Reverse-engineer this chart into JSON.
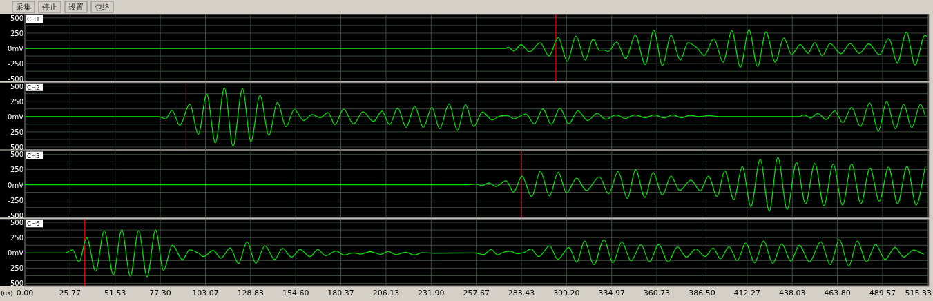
{
  "chart_data": [
    {
      "type": "line",
      "title": "CH1",
      "annotations": [
        "采集",
        "停止",
        "设置",
        "包络"
      ],
      "tick_labels": "y",
      "grid": true,
      "xlim": [
        0,
        516
      ],
      "ylim": [
        -540,
        555
      ],
      "xticks": [
        0,
        25.77,
        51.53,
        77.3,
        103.07,
        128.83,
        154.6,
        180.37,
        206.13,
        231.9,
        257.67,
        283.43,
        309.2,
        334.97,
        360.73,
        386.5,
        412.27,
        438.03,
        463.8,
        489.57,
        515.33
      ],
      "yticks": [
        500,
        {
          "value": 375,
          "label": null
        },
        250,
        {
          "value": 125,
          "label": null
        },
        {
          "value": 0,
          "label": "0mV"
        },
        {
          "value": -125,
          "label": null
        },
        -250,
        {
          "value": -375,
          "label": null
        },
        -500
      ],
      "ref_lines": [
        {
          "axis": "x",
          "value": 303.1,
          "color": "#ff0000"
        }
      ],
      "series": [
        {
          "color": "#00e000",
          "x": [
            0,
            274.2,
            275.9,
            279.1,
            283.2,
            288.1,
            294.1,
            299.2,
            304.4,
            309.6,
            314.5,
            319.9,
            324.3,
            328.0,
            330.5,
            332.9,
            337.8,
            343.0,
            348.4,
            354.1,
            359.0,
            363.9,
            368.8,
            374.1,
            378.5,
            383.4,
            387.8,
            393.2,
            398.6,
            403.5,
            408.4,
            413.3,
            418.2,
            423.0,
            428.3,
            433.2,
            437.7,
            442.6,
            447.0,
            450.8,
            455.2,
            459.6,
            465.8,
            471.1,
            476.3,
            481.7,
            487.8,
            493.1,
            498.0,
            503.2,
            508.1,
            513.8,
            515.0
          ],
          "values": [
            0,
            0,
            19,
            -42,
            60,
            -56,
            93,
            -125,
            181,
            -213,
            199,
            -190,
            153,
            -32,
            -28,
            -51,
            102,
            -167,
            218,
            -264,
            296,
            -282,
            218,
            -190,
            93,
            14,
            -116,
            157,
            -227,
            292,
            -310,
            306,
            -296,
            269,
            -227,
            171,
            -102,
            65,
            -79,
            93,
            -120,
            79,
            -88,
            79,
            -83,
            74,
            -102,
            162,
            -236,
            264,
            -273,
            218,
            190
          ]
        }
      ]
    },
    {
      "type": "line",
      "title": "CH2",
      "tick_labels": "y",
      "grid": true,
      "xlim": [
        0,
        516
      ],
      "ylim": [
        -540,
        555
      ],
      "xticks": [
        0,
        25.77,
        51.53,
        77.3,
        103.07,
        128.83,
        154.6,
        180.37,
        206.13,
        231.9,
        257.67,
        283.43,
        309.2,
        334.97,
        360.73,
        386.5,
        412.27,
        438.03,
        463.8,
        489.57,
        515.33
      ],
      "yticks": [
        500,
        {
          "value": 375,
          "label": null
        },
        250,
        {
          "value": 125,
          "label": null
        },
        {
          "value": 0,
          "label": "0mV"
        },
        {
          "value": -125,
          "label": null
        },
        -250,
        {
          "value": -375,
          "label": null
        },
        -500
      ],
      "ref_lines": [
        {
          "axis": "x",
          "value": 92.0,
          "color": "#a03030"
        }
      ],
      "series": [
        {
          "color": "#00e000",
          "x": [
            0,
            76.2,
            80.3,
            84.0,
            88.4,
            94.1,
            99.0,
            103.8,
            108.7,
            113.9,
            118.8,
            124.2,
            129.0,
            134.2,
            139.3,
            144.2,
            149.0,
            153.8,
            159.1,
            164.0,
            168.5,
            173.0,
            177.0,
            181.9,
            187.6,
            193.0,
            199.0,
            203.8,
            208.2,
            212.8,
            217.6,
            222.5,
            227.4,
            232.3,
            236.8,
            242.1,
            246.9,
            251.5,
            256.2,
            261.2,
            266.8,
            271.3,
            275.4,
            279.1,
            285.9,
            290.8,
            295.7,
            300.4,
            305.4,
            310.4,
            315.7,
            321.2,
            326.6,
            331.6,
            337.6,
            342.6,
            348.3,
            354.0,
            359.3,
            364.8,
            369.7,
            374.8,
            379.5,
            384.8,
            390.5,
            396.2,
            441.9,
            444.8,
            448.3,
            452.6,
            457.3,
            462.2,
            466.9,
            471.9,
            476.9,
            482.2,
            487.2,
            491.9,
            496.9,
            501.6,
            506.2,
            511.2,
            514.1
          ],
          "values": [
            0,
            0,
            -37,
            102,
            -144,
            204,
            -292,
            370,
            -431,
            472,
            -486,
            458,
            -412,
            347,
            -306,
            231,
            -167,
            116,
            -65,
            32,
            -19,
            65,
            -130,
            120,
            -120,
            79,
            -79,
            88,
            -130,
            139,
            -176,
            167,
            -176,
            148,
            -199,
            208,
            -227,
            194,
            -162,
            74,
            -56,
            9,
            19,
            -37,
            42,
            -120,
            125,
            -126,
            134,
            -118,
            93,
            -65,
            53,
            -45,
            28,
            -32,
            28,
            -20,
            28,
            -24,
            28,
            -20,
            20,
            0,
            16,
            0,
            0,
            28,
            -24,
            49,
            -49,
            93,
            -97,
            150,
            -162,
            223,
            -240,
            248,
            -199,
            199,
            -179,
            199,
            4
          ]
        }
      ]
    },
    {
      "type": "line",
      "title": "CH3",
      "tick_labels": "y",
      "grid": true,
      "xlim": [
        0,
        516
      ],
      "ylim": [
        -540,
        555
      ],
      "xticks": [
        0,
        25.77,
        51.53,
        77.3,
        103.07,
        128.83,
        154.6,
        180.37,
        206.13,
        231.9,
        257.67,
        283.43,
        309.2,
        334.97,
        360.73,
        386.5,
        412.27,
        438.03,
        463.8,
        489.57,
        515.33
      ],
      "yticks": [
        500,
        {
          "value": 375,
          "label": null
        },
        250,
        {
          "value": 125,
          "label": null
        },
        {
          "value": 0,
          "label": "0mV"
        },
        {
          "value": -125,
          "label": null
        },
        -250,
        {
          "value": -375,
          "label": null
        },
        -500
      ],
      "ref_lines": [
        {
          "axis": "x",
          "value": 283.3,
          "color": "#a03030"
        }
      ],
      "series": [
        {
          "color": "#00e000",
          "x": [
            0,
            253.0,
            257.4,
            260.9,
            264.9,
            268.8,
            274.6,
            279.0,
            283.7,
            289.3,
            294.2,
            299.5,
            304.4,
            309.2,
            314.9,
            320.5,
            327.9,
            333.2,
            338.6,
            343.9,
            348.6,
            353.9,
            358.6,
            363.9,
            368.8,
            373.7,
            380.2,
            385.5,
            390.2,
            395.1,
            399.5,
            404.7,
            409.5,
            414.4,
            419.7,
            424.9,
            429.8,
            435.1,
            440.4,
            445.6,
            450.9,
            456.1,
            461.4,
            466.7,
            471.9,
            477.2,
            482.4,
            487.7,
            493.0,
            498.2,
            503.5,
            508.8,
            514.0
          ],
          "values": [
            0,
            0,
            10,
            -15,
            30,
            -30,
            65,
            -120,
            139,
            -194,
            219,
            -184,
            204,
            -134,
            105,
            -95,
            129,
            -149,
            214,
            -224,
            244,
            -209,
            199,
            -169,
            139,
            -95,
            75,
            -100,
            139,
            -194,
            229,
            -244,
            299,
            -359,
            418,
            -433,
            448,
            -408,
            364,
            -309,
            349,
            -344,
            339,
            -334,
            339,
            -309,
            274,
            -269,
            289,
            -309,
            299,
            -334,
            299
          ]
        }
      ]
    },
    {
      "type": "line",
      "title": "CH6",
      "xlabel": "(us)",
      "grid": true,
      "xlim": [
        0,
        516
      ],
      "ylim": [
        -540,
        555
      ],
      "xticks": [
        {
          "value": 0,
          "label": "0.00"
        },
        25.77,
        51.53,
        {
          "value": 77.3,
          "label": "77.30"
        },
        103.07,
        128.83,
        {
          "value": 154.6,
          "label": "154.60"
        },
        180.37,
        206.13,
        {
          "value": 231.9,
          "label": "231.90"
        },
        257.67,
        283.43,
        {
          "value": 309.2,
          "label": "309.20"
        },
        334.97,
        360.73,
        {
          "value": 386.5,
          "label": "386.50"
        },
        412.27,
        438.03,
        {
          "value": 463.8,
          "label": "463.80"
        },
        489.57,
        515.33
      ],
      "yticks": [
        500,
        {
          "value": 375,
          "label": null
        },
        250,
        {
          "value": 125,
          "label": null
        },
        {
          "value": 0,
          "label": "0mV"
        },
        {
          "value": -125,
          "label": null
        },
        -250,
        {
          "value": -375,
          "label": null
        },
        -500
      ],
      "ref_lines": [
        {
          "axis": "x",
          "value": 34.0,
          "color": "#ff0000"
        }
      ],
      "series": [
        {
          "color": "#00e000",
          "x": [
            0,
            23.4,
            27.2,
            30.9,
            35.3,
            40.4,
            45.3,
            50.5,
            55.3,
            60.2,
            64.9,
            69.8,
            74.6,
            79.1,
            84.2,
            90.0,
            94.0,
            98.8,
            101.9,
            107.5,
            111.9,
            117.2,
            121.9,
            126.8,
            131.8,
            137.0,
            142.6,
            147.0,
            152.3,
            157.0,
            162.8,
            167.2,
            171.6,
            177.7,
            182.1,
            187.4,
            191.7,
            197.0,
            203.1,
            207.5,
            211.9,
            217.2,
            222.4,
            226.8,
            233.8,
            256.6,
            262.0,
            266.1,
            269.8,
            273.4,
            277.0,
            281.2,
            284.8,
            288.9,
            293.3,
            299.5,
            304.1,
            310.6,
            315.0,
            319.5,
            324.8,
            330.5,
            335.7,
            340.7,
            346.0,
            351.7,
            356.5,
            361.8,
            367.1,
            372.5,
            377.7,
            382.9,
            388.3,
            392.9,
            397.0,
            401.9,
            406.6,
            411.5,
            416.5,
            421.7,
            426.9,
            432.0,
            437.2,
            442.1,
            447.8,
            454.3,
            459.7,
            464.9,
            470.3,
            475.2,
            480.4,
            485.6,
            491.0,
            496.7,
            501.6,
            507.3,
            513.0
          ],
          "values": [
            0,
            0,
            50,
            -149,
            249,
            -299,
            364,
            -359,
            378,
            -383,
            364,
            -393,
            378,
            -284,
            125,
            -110,
            50,
            0,
            -60,
            40,
            -85,
            80,
            -174,
            179,
            -169,
            115,
            -110,
            75,
            -70,
            55,
            -60,
            55,
            -45,
            30,
            -35,
            0,
            -20,
            20,
            -25,
            25,
            -30,
            10,
            -35,
            5,
            -5,
            0,
            -28,
            56,
            -32,
            14,
            28,
            -14,
            5,
            65,
            -60,
            116,
            -106,
            88,
            -153,
            194,
            -194,
            218,
            -162,
            181,
            -130,
            134,
            -148,
            139,
            -148,
            97,
            -69,
            65,
            -60,
            79,
            -97,
            102,
            -125,
            162,
            -162,
            194,
            -171,
            148,
            -134,
            125,
            -148,
            181,
            -194,
            218,
            -218,
            194,
            -148,
            134,
            -106,
            88,
            -69,
            46,
            -23
          ]
        }
      ]
    }
  ]
}
